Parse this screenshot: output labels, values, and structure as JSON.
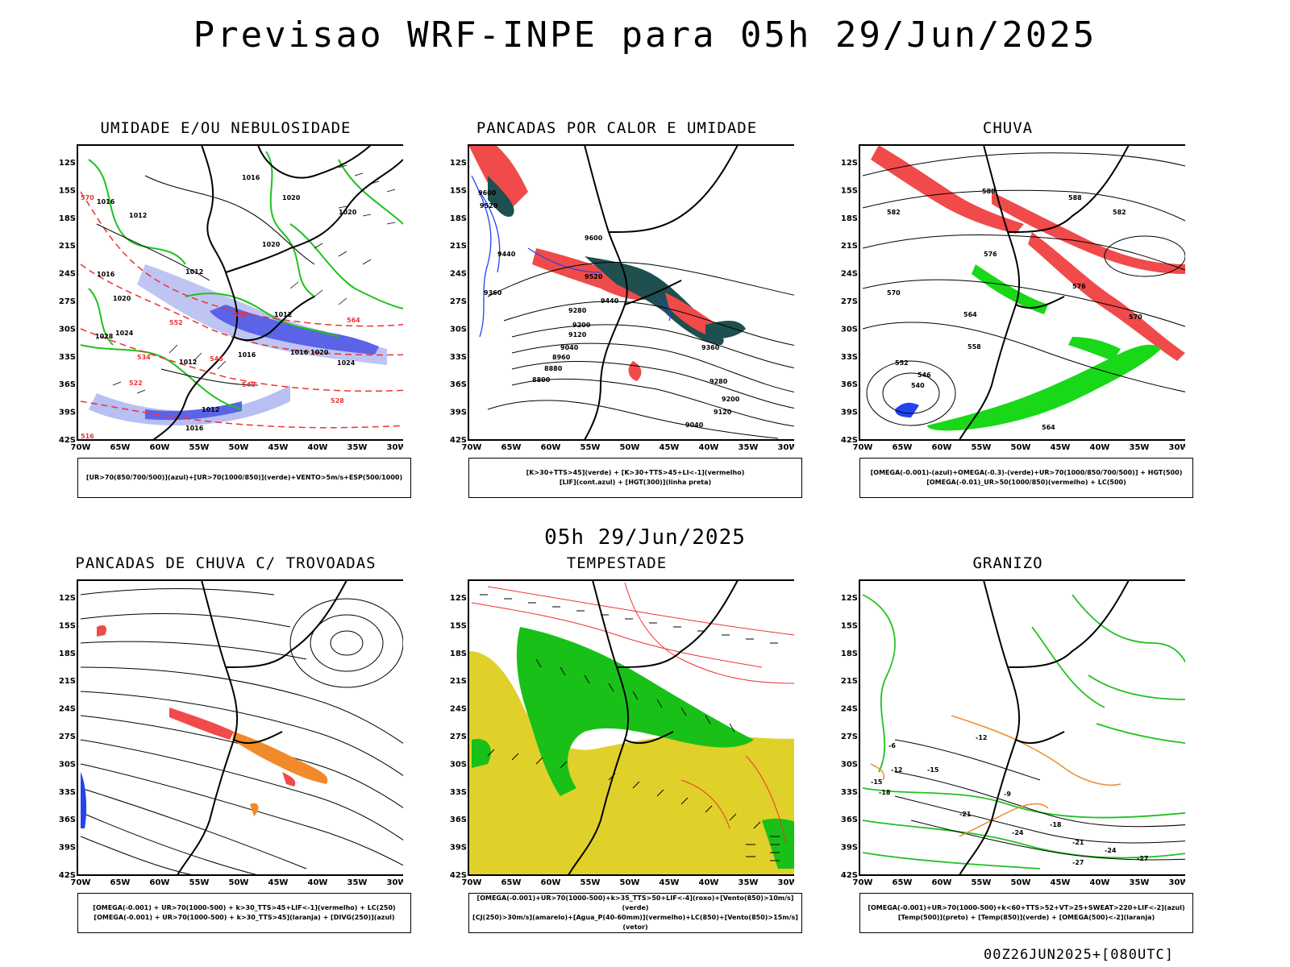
{
  "header": {
    "title": "Previsao WRF-INPE  para 05h 29/Jun/2025"
  },
  "middle_date": "05h 29/Jun/2025",
  "footer": "00Z26JUN2025+[080UTC]",
  "axis": {
    "lat_labels": [
      "12S",
      "15S",
      "18S",
      "21S",
      "24S",
      "27S",
      "30S",
      "33S",
      "36S",
      "39S",
      "42S"
    ],
    "lon_labels": [
      "70W",
      "65W",
      "60W",
      "55W",
      "50W",
      "45W",
      "40W",
      "35W",
      "30W"
    ]
  },
  "panels": [
    {
      "id": "umidade",
      "title": "UMIDADE E/OU NEBULOSIDADE",
      "legend": [
        "[UR>70(850/700/500)](azul)+[UR>70(1000/850)](verde)+VENTO>5m/s+ESP(500/1000)"
      ],
      "labels": [
        "1016",
        "1016",
        "1012",
        "1020",
        "1020",
        "1020",
        "1012",
        "1016",
        "1012",
        "1020",
        "1024",
        "1028",
        "1012",
        "1016",
        "1016",
        "1020",
        "1024",
        "1012",
        "1016",
        "570",
        "564",
        "558",
        "552",
        "546",
        "540",
        "534",
        "528",
        "522",
        "516"
      ]
    },
    {
      "id": "pancadas_calor",
      "title": "PANCADAS POR CALOR E UMIDADE",
      "legend": [
        "[K>30+TTS>45](verde)  +  [K>30+TTS>45+LI<-1](vermelho)",
        "[LIF](cont.azul)  +  [HGT(300)](linha preta)"
      ],
      "labels": [
        "9600",
        "9520",
        "9440",
        "9360",
        "9280",
        "9200",
        "9120",
        "9040",
        "8960",
        "8880",
        "8800",
        "9600",
        "9520",
        "9440",
        "9360",
        "9280",
        "9200",
        "9120",
        "9040"
      ]
    },
    {
      "id": "chuva",
      "title": "CHUVA",
      "legend": [
        "[OMEGA(-0.001)-(azul)+OMEGA(-0.3)-(verde)+UR>70(1000/850/700/500)]  +  HGT(500)",
        "[OMEGA(-0.01)_UR>50(1000/850)(vermelho)  +  LC(500)"
      ],
      "labels": [
        "588",
        "582",
        "576",
        "570",
        "564",
        "558",
        "552",
        "546",
        "540",
        "588",
        "582",
        "576",
        "570",
        "564"
      ]
    },
    {
      "id": "trovoadas",
      "title": "PANCADAS DE CHUVA C/ TROVOADAS",
      "legend": [
        "[OMEGA(-0.001)  +  UR>70(1000-500)  +  k>30_TTS>45+LIF<-1](vermelho)  +  LC(250)",
        "[OMEGA(-0.001)  +  UR>70(1000-500)  +  k>30_TTS>45](laranja)  +  [DIVG(250)](azul)"
      ],
      "labels": []
    },
    {
      "id": "tempestade",
      "title": "TEMPESTADE",
      "legend": [
        "[OMEGA(-0.001)+UR>70(1000-500)+k>35_TTS>50+LIF<-4](roxo)+[Vento(850)>10m/s](verde)",
        "[CJ(250)>30m/s](amarelo)+[Agua_P(40-60mm)](vermelho)+LC(850)+[Vento(850)>15m/s](vetor)"
      ],
      "labels": []
    },
    {
      "id": "granizo",
      "title": "GRANIZO",
      "legend": [
        "[OMEGA(-0.001)+UR>70(1000-500)+k<60+TTS>52+VT>25+SWEAT>220+LIF<-2](azul)",
        "[Temp(500)](preto)  +  [Temp(850)](verde)  +  [OMEGA(500)<-2](laranja)"
      ],
      "labels": [
        "-6",
        "-12",
        "-15",
        "-18",
        "-21",
        "-24",
        "-27",
        "-9",
        "-12",
        "-15",
        "-18",
        "-21",
        "-24",
        "-27"
      ]
    }
  ]
}
